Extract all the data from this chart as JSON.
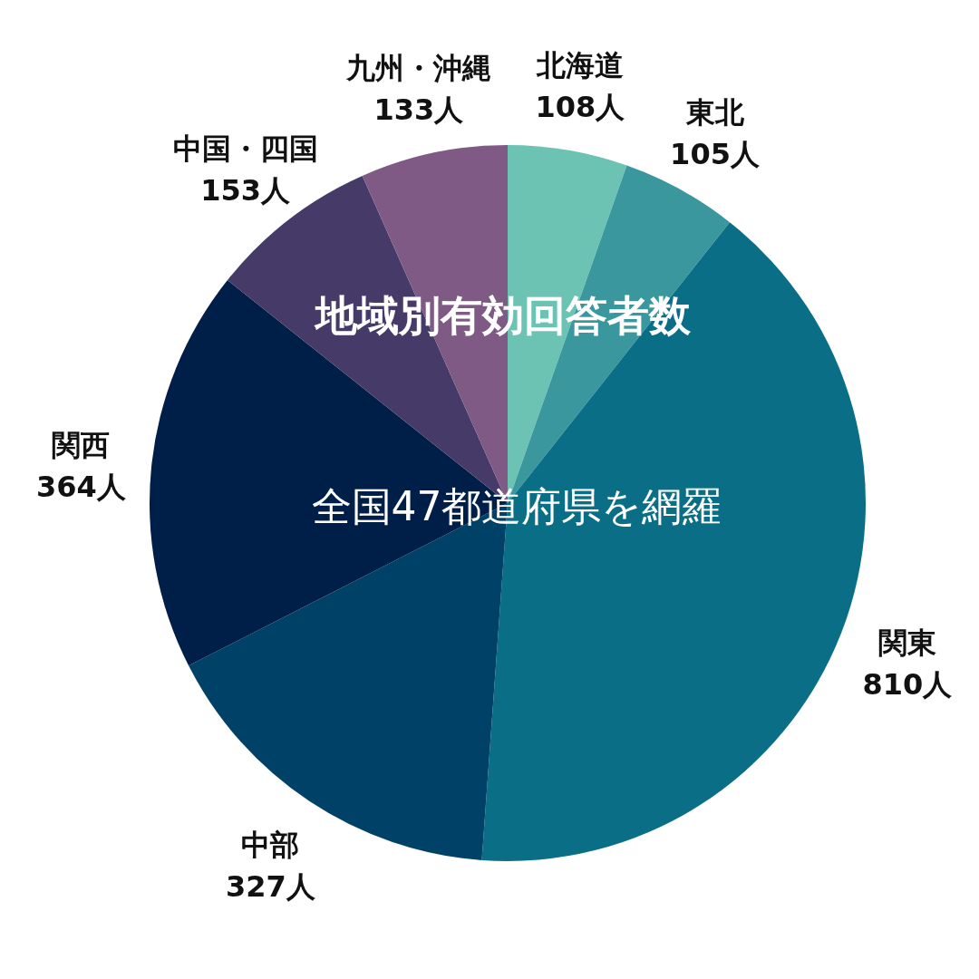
{
  "chart_data": {
    "type": "pie",
    "title": "地域別有効回答者数",
    "subtitle": "全国47都道府県を網羅",
    "categories": [
      "北海道",
      "東北",
      "関東",
      "中部",
      "関西",
      "中国・四国",
      "九州・沖縄"
    ],
    "values": [
      108,
      105,
      810,
      327,
      364,
      153,
      133
    ],
    "value_labels": [
      "108人",
      "105人",
      "810人",
      "327人",
      "364人",
      "153人",
      "133人"
    ],
    "colors": [
      "#6cc3b4",
      "#3a979e",
      "#0a6e87",
      "#004267",
      "#001f48",
      "#453a68",
      "#7f5a85"
    ]
  }
}
